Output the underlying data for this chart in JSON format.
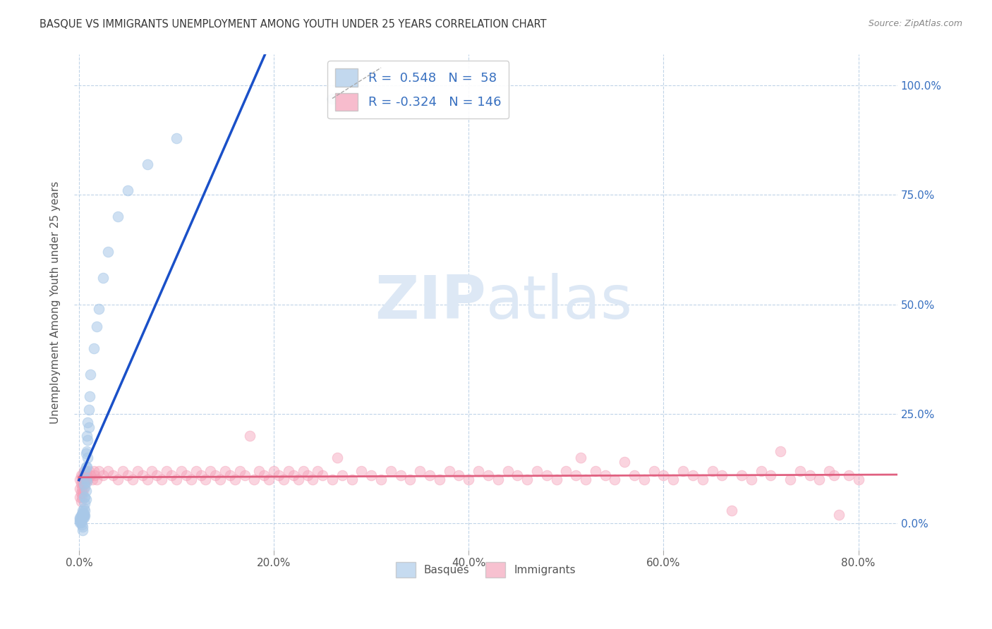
{
  "title": "BASQUE VS IMMIGRANTS UNEMPLOYMENT AMONG YOUTH UNDER 25 YEARS CORRELATION CHART",
  "source": "Source: ZipAtlas.com",
  "ylabel": "Unemployment Among Youth under 25 years",
  "xlim": [
    -0.005,
    0.84
  ],
  "ylim": [
    -0.06,
    1.07
  ],
  "x_ticks": [
    0.0,
    0.2,
    0.4,
    0.6,
    0.8
  ],
  "x_tick_labels": [
    "0.0%",
    "20.0%",
    "40.0%",
    "60.0%",
    "80.0%"
  ],
  "y_ticks": [
    0.0,
    0.25,
    0.5,
    0.75,
    1.0
  ],
  "y_tick_labels_right": [
    "0.0%",
    "25.0%",
    "50.0%",
    "75.0%",
    "100.0%"
  ],
  "basque_color": "#a8c8e8",
  "immigrant_color": "#f4a0b8",
  "basque_line_color": "#1a50c8",
  "immigrant_line_color": "#e06080",
  "grid_color": "#c0d4e8",
  "title_color": "#383838",
  "source_color": "#888888",
  "right_tick_color": "#3870c0",
  "watermark_color": "#dde8f5",
  "background": "#ffffff",
  "basque_R": 0.548,
  "basque_N": 58,
  "immigrant_R": -0.324,
  "immigrant_N": 146,
  "basque_pts": [
    [
      0.001,
      0.014
    ],
    [
      0.001,
      0.01
    ],
    [
      0.001,
      0.006
    ],
    [
      0.001,
      0.002
    ],
    [
      0.002,
      0.018
    ],
    [
      0.002,
      0.014
    ],
    [
      0.002,
      0.01
    ],
    [
      0.002,
      0.006
    ],
    [
      0.002,
      0.002
    ],
    [
      0.003,
      0.022
    ],
    [
      0.003,
      0.018
    ],
    [
      0.003,
      0.014
    ],
    [
      0.003,
      0.008
    ],
    [
      0.003,
      -0.002
    ],
    [
      0.004,
      0.03
    ],
    [
      0.004,
      0.024
    ],
    [
      0.004,
      0.018
    ],
    [
      0.004,
      0.012
    ],
    [
      0.004,
      -0.008
    ],
    [
      0.004,
      -0.016
    ],
    [
      0.005,
      0.09
    ],
    [
      0.005,
      0.06
    ],
    [
      0.005,
      0.035
    ],
    [
      0.005,
      0.022
    ],
    [
      0.005,
      0.018
    ],
    [
      0.005,
      0.014
    ],
    [
      0.006,
      0.12
    ],
    [
      0.006,
      0.085
    ],
    [
      0.006,
      0.06
    ],
    [
      0.006,
      0.045
    ],
    [
      0.006,
      0.03
    ],
    [
      0.006,
      0.018
    ],
    [
      0.007,
      0.16
    ],
    [
      0.007,
      0.13
    ],
    [
      0.007,
      0.1
    ],
    [
      0.007,
      0.075
    ],
    [
      0.007,
      0.055
    ],
    [
      0.008,
      0.2
    ],
    [
      0.008,
      0.165
    ],
    [
      0.008,
      0.13
    ],
    [
      0.008,
      0.095
    ],
    [
      0.009,
      0.23
    ],
    [
      0.009,
      0.19
    ],
    [
      0.009,
      0.15
    ],
    [
      0.01,
      0.26
    ],
    [
      0.01,
      0.22
    ],
    [
      0.011,
      0.29
    ],
    [
      0.012,
      0.34
    ],
    [
      0.015,
      0.4
    ],
    [
      0.018,
      0.45
    ],
    [
      0.02,
      0.49
    ],
    [
      0.025,
      0.56
    ],
    [
      0.03,
      0.62
    ],
    [
      0.04,
      0.7
    ],
    [
      0.05,
      0.76
    ],
    [
      0.07,
      0.82
    ],
    [
      0.1,
      0.88
    ],
    [
      0.26,
      0.97
    ]
  ],
  "immigrant_pts_low": [
    [
      0.001,
      0.1
    ],
    [
      0.001,
      0.08
    ],
    [
      0.001,
      0.06
    ],
    [
      0.002,
      0.11
    ],
    [
      0.002,
      0.09
    ],
    [
      0.002,
      0.07
    ],
    [
      0.002,
      0.05
    ],
    [
      0.003,
      0.1
    ],
    [
      0.003,
      0.08
    ],
    [
      0.003,
      0.06
    ],
    [
      0.004,
      0.11
    ],
    [
      0.004,
      0.09
    ],
    [
      0.004,
      0.07
    ],
    [
      0.005,
      0.12
    ],
    [
      0.005,
      0.1
    ],
    [
      0.005,
      0.08
    ],
    [
      0.006,
      0.11
    ],
    [
      0.006,
      0.09
    ],
    [
      0.007,
      0.12
    ],
    [
      0.007,
      0.1
    ],
    [
      0.008,
      0.11
    ],
    [
      0.009,
      0.1
    ],
    [
      0.01,
      0.12
    ],
    [
      0.012,
      0.11
    ],
    [
      0.014,
      0.1
    ],
    [
      0.015,
      0.12
    ],
    [
      0.016,
      0.11
    ],
    [
      0.018,
      0.1
    ],
    [
      0.02,
      0.12
    ],
    [
      0.025,
      0.11
    ],
    [
      0.03,
      0.12
    ],
    [
      0.035,
      0.11
    ],
    [
      0.04,
      0.1
    ],
    [
      0.045,
      0.12
    ],
    [
      0.05,
      0.11
    ],
    [
      0.055,
      0.1
    ],
    [
      0.06,
      0.12
    ],
    [
      0.065,
      0.11
    ],
    [
      0.07,
      0.1
    ],
    [
      0.075,
      0.12
    ],
    [
      0.08,
      0.11
    ],
    [
      0.085,
      0.1
    ],
    [
      0.09,
      0.12
    ],
    [
      0.095,
      0.11
    ],
    [
      0.1,
      0.1
    ],
    [
      0.105,
      0.12
    ],
    [
      0.11,
      0.11
    ],
    [
      0.115,
      0.1
    ],
    [
      0.12,
      0.12
    ],
    [
      0.125,
      0.11
    ],
    [
      0.13,
      0.1
    ],
    [
      0.135,
      0.12
    ],
    [
      0.14,
      0.11
    ],
    [
      0.145,
      0.1
    ],
    [
      0.15,
      0.12
    ],
    [
      0.155,
      0.11
    ],
    [
      0.16,
      0.1
    ],
    [
      0.165,
      0.12
    ],
    [
      0.17,
      0.11
    ],
    [
      0.175,
      0.2
    ],
    [
      0.18,
      0.1
    ],
    [
      0.185,
      0.12
    ],
    [
      0.19,
      0.11
    ],
    [
      0.195,
      0.1
    ],
    [
      0.2,
      0.12
    ],
    [
      0.205,
      0.11
    ],
    [
      0.21,
      0.1
    ],
    [
      0.215,
      0.12
    ],
    [
      0.22,
      0.11
    ],
    [
      0.225,
      0.1
    ],
    [
      0.23,
      0.12
    ],
    [
      0.235,
      0.11
    ],
    [
      0.24,
      0.1
    ],
    [
      0.245,
      0.12
    ],
    [
      0.25,
      0.11
    ],
    [
      0.26,
      0.1
    ],
    [
      0.265,
      0.15
    ],
    [
      0.27,
      0.11
    ],
    [
      0.28,
      0.1
    ],
    [
      0.29,
      0.12
    ],
    [
      0.3,
      0.11
    ],
    [
      0.31,
      0.1
    ],
    [
      0.32,
      0.12
    ],
    [
      0.33,
      0.11
    ],
    [
      0.34,
      0.1
    ],
    [
      0.35,
      0.12
    ],
    [
      0.36,
      0.11
    ],
    [
      0.37,
      0.1
    ],
    [
      0.38,
      0.12
    ],
    [
      0.39,
      0.11
    ],
    [
      0.4,
      0.1
    ],
    [
      0.41,
      0.12
    ],
    [
      0.42,
      0.11
    ],
    [
      0.43,
      0.1
    ],
    [
      0.44,
      0.12
    ],
    [
      0.45,
      0.11
    ],
    [
      0.46,
      0.1
    ],
    [
      0.47,
      0.12
    ],
    [
      0.48,
      0.11
    ],
    [
      0.49,
      0.1
    ],
    [
      0.5,
      0.12
    ],
    [
      0.51,
      0.11
    ],
    [
      0.515,
      0.15
    ],
    [
      0.52,
      0.1
    ],
    [
      0.53,
      0.12
    ],
    [
      0.54,
      0.11
    ],
    [
      0.55,
      0.1
    ],
    [
      0.56,
      0.14
    ],
    [
      0.57,
      0.11
    ],
    [
      0.58,
      0.1
    ],
    [
      0.59,
      0.12
    ],
    [
      0.6,
      0.11
    ],
    [
      0.61,
      0.1
    ],
    [
      0.62,
      0.12
    ],
    [
      0.63,
      0.11
    ],
    [
      0.64,
      0.1
    ],
    [
      0.65,
      0.12
    ],
    [
      0.66,
      0.11
    ],
    [
      0.67,
      0.03
    ],
    [
      0.68,
      0.11
    ],
    [
      0.69,
      0.1
    ],
    [
      0.7,
      0.12
    ],
    [
      0.71,
      0.11
    ],
    [
      0.72,
      0.165
    ],
    [
      0.73,
      0.1
    ],
    [
      0.74,
      0.12
    ],
    [
      0.75,
      0.11
    ],
    [
      0.76,
      0.1
    ],
    [
      0.77,
      0.12
    ],
    [
      0.775,
      0.11
    ],
    [
      0.78,
      0.02
    ],
    [
      0.79,
      0.11
    ],
    [
      0.8,
      0.1
    ]
  ]
}
